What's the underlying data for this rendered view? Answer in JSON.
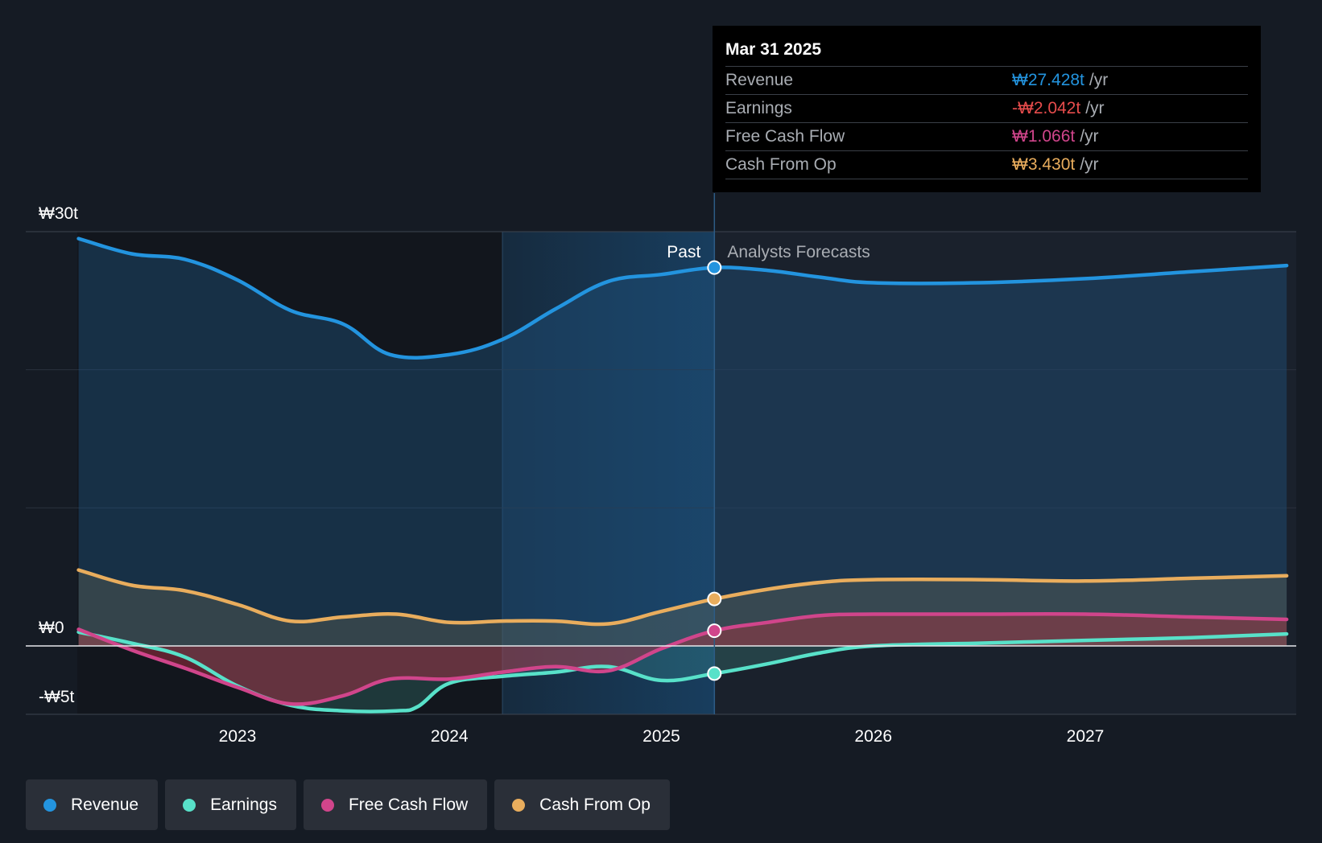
{
  "chart_data": {
    "type": "area",
    "x_range": [
      2022.3,
      2027.95
    ],
    "y_range": [
      -5,
      30
    ],
    "y_ticks": [
      {
        "value": 30,
        "label": "₩30t"
      },
      {
        "value": 0,
        "label": "₩0"
      },
      {
        "value": -5,
        "label": "-₩5t"
      }
    ],
    "x_ticks": [
      {
        "value": 2023,
        "label": "2023"
      },
      {
        "value": 2024,
        "label": "2024"
      },
      {
        "value": 2025,
        "label": "2025"
      },
      {
        "value": 2026,
        "label": "2026"
      },
      {
        "value": 2027,
        "label": "2027"
      }
    ],
    "past_label": "Past",
    "forecast_label": "Analysts Forecasts",
    "divider_x": 2025.25,
    "highlight_start_x": 2024.25,
    "series": [
      {
        "name": "Revenue",
        "color": "#2394df",
        "points": [
          [
            2022.25,
            29.5
          ],
          [
            2022.5,
            28.4
          ],
          [
            2022.75,
            28.0
          ],
          [
            2023.0,
            26.5
          ],
          [
            2023.25,
            24.3
          ],
          [
            2023.5,
            23.3
          ],
          [
            2023.72,
            21.1
          ],
          [
            2024.0,
            21.1
          ],
          [
            2024.25,
            22.2
          ],
          [
            2024.5,
            24.4
          ],
          [
            2024.75,
            26.4
          ],
          [
            2025.0,
            26.9
          ],
          [
            2025.25,
            27.4
          ],
          [
            2025.5,
            27.2
          ],
          [
            2025.75,
            26.7
          ],
          [
            2026.0,
            26.3
          ],
          [
            2026.5,
            26.3
          ],
          [
            2027.0,
            26.6
          ],
          [
            2027.5,
            27.1
          ],
          [
            2028.0,
            27.6
          ]
        ]
      },
      {
        "name": "Earnings",
        "color": "#58e1c9",
        "points": [
          [
            2022.25,
            1.0
          ],
          [
            2022.5,
            0.2
          ],
          [
            2022.75,
            -0.8
          ],
          [
            2023.0,
            -2.9
          ],
          [
            2023.25,
            -4.3
          ],
          [
            2023.5,
            -4.7
          ],
          [
            2023.75,
            -4.7
          ],
          [
            2023.85,
            -4.4
          ],
          [
            2024.0,
            -2.7
          ],
          [
            2024.25,
            -2.2
          ],
          [
            2024.5,
            -1.9
          ],
          [
            2024.75,
            -1.5
          ],
          [
            2025.0,
            -2.5
          ],
          [
            2025.25,
            -2.0
          ],
          [
            2025.5,
            -1.3
          ],
          [
            2025.75,
            -0.5
          ],
          [
            2026.0,
            0.0
          ],
          [
            2026.5,
            0.2
          ],
          [
            2027.0,
            0.4
          ],
          [
            2027.5,
            0.6
          ],
          [
            2028.0,
            0.9
          ]
        ]
      },
      {
        "name": "Free Cash Flow",
        "color": "#d0458b",
        "points": [
          [
            2022.25,
            1.2
          ],
          [
            2022.5,
            -0.3
          ],
          [
            2022.75,
            -1.6
          ],
          [
            2023.0,
            -3.0
          ],
          [
            2023.25,
            -4.2
          ],
          [
            2023.5,
            -3.6
          ],
          [
            2023.72,
            -2.4
          ],
          [
            2024.0,
            -2.4
          ],
          [
            2024.25,
            -1.9
          ],
          [
            2024.5,
            -1.5
          ],
          [
            2024.75,
            -1.8
          ],
          [
            2025.0,
            -0.2
          ],
          [
            2025.25,
            1.1
          ],
          [
            2025.5,
            1.7
          ],
          [
            2025.75,
            2.2
          ],
          [
            2026.0,
            2.3
          ],
          [
            2026.5,
            2.3
          ],
          [
            2027.0,
            2.3
          ],
          [
            2027.5,
            2.1
          ],
          [
            2028.0,
            1.9
          ]
        ]
      },
      {
        "name": "Cash From Op",
        "color": "#e9ad5d",
        "points": [
          [
            2022.25,
            5.5
          ],
          [
            2022.5,
            4.4
          ],
          [
            2022.75,
            4.0
          ],
          [
            2023.0,
            3.0
          ],
          [
            2023.25,
            1.8
          ],
          [
            2023.5,
            2.1
          ],
          [
            2023.75,
            2.3
          ],
          [
            2024.0,
            1.7
          ],
          [
            2024.25,
            1.8
          ],
          [
            2024.5,
            1.8
          ],
          [
            2024.75,
            1.6
          ],
          [
            2025.0,
            2.5
          ],
          [
            2025.25,
            3.4
          ],
          [
            2025.5,
            4.1
          ],
          [
            2025.75,
            4.6
          ],
          [
            2026.0,
            4.8
          ],
          [
            2026.5,
            4.8
          ],
          [
            2027.0,
            4.7
          ],
          [
            2027.5,
            4.9
          ],
          [
            2028.0,
            5.1
          ]
        ]
      }
    ]
  },
  "tooltip": {
    "date": "Mar 31 2025",
    "rows": [
      {
        "label": "Revenue",
        "value": "₩27.428t",
        "unit": "/yr",
        "color": "#2394df"
      },
      {
        "label": "Earnings",
        "value": "-₩2.042t",
        "unit": "/yr",
        "color": "#e64c4c"
      },
      {
        "label": "Free Cash Flow",
        "value": "₩1.066t",
        "unit": "/yr",
        "color": "#d0458b"
      },
      {
        "label": "Cash From Op",
        "value": "₩3.430t",
        "unit": "/yr",
        "color": "#e9ad5d"
      }
    ]
  },
  "legend": [
    {
      "label": "Revenue",
      "color": "#2394df"
    },
    {
      "label": "Earnings",
      "color": "#58e1c9"
    },
    {
      "label": "Free Cash Flow",
      "color": "#d0458b"
    },
    {
      "label": "Cash From Op",
      "color": "#e9ad5d"
    }
  ]
}
